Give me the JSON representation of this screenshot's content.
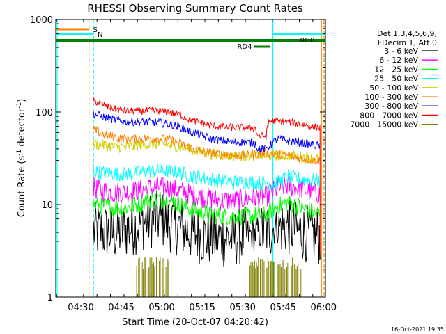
{
  "chart_data": {
    "type": "line",
    "title": "RHESSI Observing Summary Count Rates",
    "xlabel": "Start Time (20-Oct-07 04:20:42)",
    "ylabel": "Count Rate (s⁻¹ detector⁻¹)",
    "ylabel_parts": [
      "Count Rate (s",
      "-1",
      " detector",
      "-1",
      ")"
    ],
    "yscale": "log",
    "ylim": [
      1,
      1000
    ],
    "xlim_minutes": [
      0,
      100
    ],
    "x_tick_labels": [
      {
        "label": "04:30",
        "min": 9.3
      },
      {
        "label": "04:45",
        "min": 24.3
      },
      {
        "label": "05:00",
        "min": 39.3
      },
      {
        "label": "05:15",
        "min": 54.3
      },
      {
        "label": "05:30",
        "min": 69.3
      },
      {
        "label": "05:45",
        "min": 84.3
      },
      {
        "label": "06:00",
        "min": 99.3
      }
    ],
    "y_tick_labels": [
      {
        "label": "1",
        "value": 1
      },
      {
        "label": "10",
        "value": 10
      },
      {
        "label": "100",
        "value": 100
      },
      {
        "label": "1000",
        "value": 1000
      }
    ],
    "legend_header": [
      "Det 1,3,4,5,6,9,",
      "FDecim 1, Att 0"
    ],
    "legend_position": "right",
    "series": [
      {
        "name": "3 - 6 keV",
        "color": "#000000",
        "noise": 0.32,
        "gaps": [
          [
            71,
            76
          ],
          [
            81,
            83
          ]
        ],
        "x": [
          14,
          18,
          22,
          26,
          30,
          34,
          38,
          42,
          46,
          50,
          54,
          58,
          62,
          66,
          70,
          74,
          78,
          82,
          86,
          90,
          94,
          98
        ],
        "y": [
          5.2,
          5.0,
          4.9,
          5.3,
          6.0,
          6.8,
          7.0,
          6.4,
          5.6,
          5.0,
          4.6,
          4.4,
          4.3,
          4.4,
          4.6,
          4.8,
          5.2,
          5.8,
          5.8,
          5.2,
          4.8,
          4.5
        ]
      },
      {
        "name": "6 - 12 keV",
        "color": "#ff00ff",
        "noise": 0.12,
        "x": [
          14,
          18,
          22,
          26,
          30,
          34,
          38,
          42,
          46,
          50,
          54,
          58,
          62,
          66,
          70,
          74,
          78,
          82,
          86,
          90,
          94,
          98
        ],
        "y": [
          15,
          14,
          13.5,
          13.5,
          14,
          15,
          15.5,
          15,
          14,
          13,
          12,
          11.5,
          11,
          11,
          11.5,
          12,
          12,
          15,
          16,
          15,
          14,
          13
        ]
      },
      {
        "name": "12 - 25 keV",
        "color": "#00ff00",
        "noise": 0.1,
        "x": [
          14,
          18,
          22,
          26,
          30,
          34,
          38,
          42,
          46,
          50,
          54,
          58,
          62,
          66,
          70,
          74,
          78,
          82,
          86,
          90,
          94,
          98
        ],
        "y": [
          10,
          9.6,
          9.2,
          9.3,
          10,
          11,
          11.5,
          11,
          10,
          9,
          8.3,
          7.8,
          7.5,
          7.4,
          7.5,
          7.6,
          7.8,
          9.5,
          10.5,
          9.5,
          8.5,
          7.8
        ]
      },
      {
        "name": "25 - 50 keV",
        "color": "#00ffff",
        "noise": 0.08,
        "x": [
          14,
          18,
          22,
          26,
          30,
          34,
          38,
          42,
          46,
          50,
          54,
          58,
          62,
          66,
          70,
          74,
          78,
          82,
          86,
          90,
          94,
          98
        ],
        "y": [
          23,
          22,
          21.5,
          21.5,
          22,
          23,
          23.5,
          23,
          22,
          20.5,
          19.5,
          18.5,
          18,
          17.5,
          17.5,
          17.5,
          17,
          17,
          20,
          19,
          18.5,
          18
        ]
      },
      {
        "name": "50 - 100 keV",
        "color": "#d0d000",
        "noise": 0.06,
        "x": [
          14,
          18,
          22,
          26,
          30,
          34,
          38,
          42,
          46,
          50,
          54,
          58,
          62,
          66,
          70,
          74,
          78,
          82,
          86,
          90,
          94,
          98
        ],
        "y": [
          45,
          44,
          42,
          42,
          43,
          45,
          45,
          44,
          42,
          39,
          37,
          35,
          34,
          33.5,
          33.5,
          34,
          34,
          34,
          34,
          33,
          32,
          31
        ]
      },
      {
        "name": "100 - 300 keV",
        "color": "#ff8000",
        "noise": 0.05,
        "x": [
          14,
          18,
          22,
          26,
          30,
          34,
          38,
          42,
          46,
          50,
          54,
          58,
          62,
          66,
          70,
          74,
          78,
          82,
          86,
          90,
          94,
          98
        ],
        "y": [
          64,
          57,
          53,
          51,
          51,
          52,
          52,
          50,
          46,
          41,
          38,
          36,
          35,
          34,
          34,
          35,
          36,
          35,
          34,
          32,
          31,
          30
        ]
      },
      {
        "name": "300 - 800 keV",
        "color": "#0000ff",
        "noise": 0.045,
        "x": [
          14,
          18,
          22,
          26,
          30,
          34,
          38,
          42,
          46,
          50,
          54,
          58,
          62,
          66,
          70,
          74,
          75,
          78,
          82,
          86,
          90,
          94,
          98
        ],
        "y": [
          96,
          88,
          82,
          79,
          78,
          78,
          77,
          74,
          69,
          61,
          56,
          51,
          49,
          47,
          47,
          46,
          40,
          40,
          51,
          49,
          47,
          45,
          43
        ]
      },
      {
        "name": "800 - 7000 keV",
        "color": "#ff0000",
        "noise": 0.04,
        "x": [
          14,
          18,
          22,
          26,
          30,
          34,
          38,
          42,
          46,
          50,
          54,
          58,
          62,
          66,
          70,
          74,
          75,
          78,
          79,
          82,
          86,
          90,
          94,
          98
        ],
        "y": [
          133,
          118,
          108,
          103,
          102,
          103,
          103,
          100,
          93,
          82,
          76,
          71,
          69,
          68,
          68,
          67,
          55,
          55,
          80,
          79,
          78,
          75,
          71,
          68
        ]
      },
      {
        "name": "7000 - 15000 keV",
        "color": "#808000",
        "noise": 0,
        "x": [],
        "y": []
      }
    ],
    "vertical_lines": [
      {
        "color": "#00ffff",
        "style": "solid",
        "min": 0.5
      },
      {
        "color": "#ff8000",
        "style": "dashed",
        "min": 12.3
      },
      {
        "color": "#00ffff",
        "style": "dashed",
        "min": 14.0
      },
      {
        "color": "#00ffff",
        "style": "solid",
        "min": 80.5
      },
      {
        "color": "#ff8000",
        "style": "solid",
        "min": 98.5
      },
      {
        "color": "#ff8000",
        "style": "dashed",
        "min": 99.5
      },
      {
        "color": "#00ffff",
        "style": "solid",
        "min": 100.0
      }
    ],
    "flag_bars": [
      {
        "label": "S",
        "color": "#ff8000",
        "x0": 0,
        "x1": 12.3,
        "row": 0
      },
      {
        "label": "N",
        "color": "#00ffff",
        "x0": 0,
        "x1": 14.0,
        "row": 1
      },
      {
        "label": "",
        "color": "#00ffff",
        "x0": 80.5,
        "x1": 100,
        "row": 1
      },
      {
        "label": "RD0",
        "color": "#008000",
        "x0": 0,
        "x1": 100,
        "row": 2
      },
      {
        "label": "RD4",
        "color": "#008000",
        "x0": 73.5,
        "x1": 79.5,
        "row": 3
      }
    ],
    "spike_regions": [
      [
        30,
        42
      ],
      [
        72,
        91
      ]
    ],
    "grid": false
  },
  "footer": {
    "timestamp": "16-Oct-2021 19:35"
  }
}
